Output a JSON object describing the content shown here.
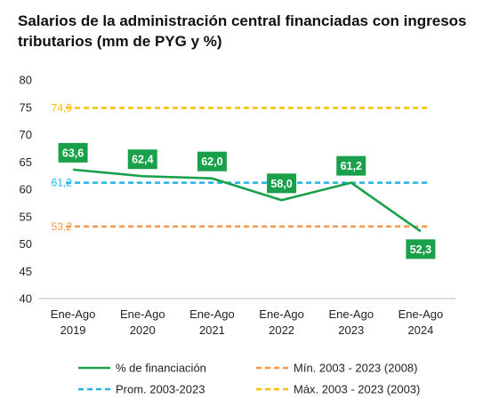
{
  "chart_data": {
    "type": "line",
    "title": "Salarios de la administración central financiadas con ingresos tributarios (mm de PYG y %)",
    "categories": [
      "Ene-Ago\n2019",
      "Ene-Ago\n2020",
      "Ene-Ago\n2021",
      "Ene-Ago\n2022",
      "Ene-Ago\n2023",
      "Ene-Ago\n2024"
    ],
    "ylim": [
      40,
      80
    ],
    "yticks": [
      40,
      45,
      50,
      55,
      60,
      65,
      70,
      75,
      80
    ],
    "grid": false,
    "legend_position": "bottom",
    "series": [
      {
        "name": "% de financiación",
        "values": [
          63.6,
          62.4,
          62.0,
          58.0,
          61.2,
          52.3
        ],
        "labels": [
          "63,6",
          "62,4",
          "62,0",
          "58,0",
          "61,2",
          "52,3"
        ],
        "color": "#1aa04a",
        "style": "solid"
      },
      {
        "name": "Prom. 2003-2023",
        "values": [
          61.2,
          61.2,
          61.2,
          61.2,
          61.2,
          61.2
        ],
        "label": "61,2",
        "color": "#1fb3e6",
        "style": "dashed"
      },
      {
        "name": "Mín. 2003 - 2023 (2008)",
        "values": [
          53.2,
          53.2,
          53.2,
          53.2,
          53.2,
          53.2
        ],
        "label": "53,2",
        "color": "#f5964a",
        "style": "dashed"
      },
      {
        "name": "Máx. 2003 - 2023 (2003)",
        "values": [
          74.9,
          74.9,
          74.9,
          74.9,
          74.9,
          74.9
        ],
        "label": "74,9",
        "color": "#f5c000",
        "style": "dashed"
      }
    ],
    "legend_order": [
      0,
      2,
      1,
      3
    ]
  }
}
